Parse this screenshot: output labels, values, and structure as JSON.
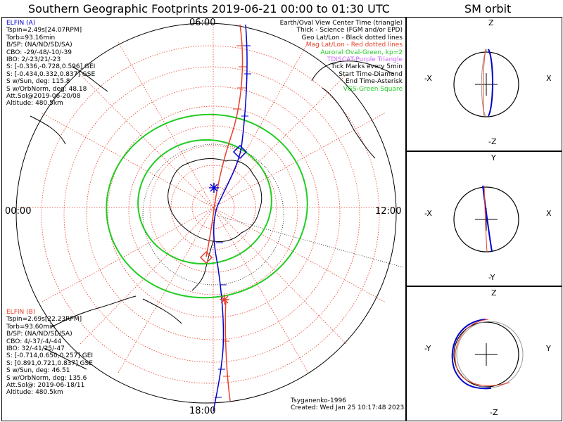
{
  "main_title": "Southern Geographic Footprints 2019-06-21 00:00 to 01:30 UTC",
  "sm_title": "SM orbit",
  "polar": {
    "time_labels": {
      "top": "06:00",
      "left": "00:00",
      "right": "12:00",
      "bottom": "18:00"
    }
  },
  "elfin_a": {
    "title": "ELFIN (A)",
    "lines": [
      "Tspin=2.49s[24.07RPM]",
      "Torb=93.16min",
      "B/SP: (NA/ND/SD/SA)",
      "CBO: -29/-48/-10/-39",
      "IBO: 2/-23/21/-23",
      "S: [-0.336,-0.728,0.596] GEI",
      "S: [-0.434,0.332,0.837] GSE",
      "S w/Sun, deg: 115.8",
      "S w/OrbNorm, deg: 48.18",
      "Att.Sol@2019-06-20/08",
      "Altitude: 480.5km"
    ],
    "color": "#0000cc"
  },
  "elfin_b": {
    "title": "ELFIN (B)",
    "lines": [
      "Tspin=2.69s[22.23RPM]",
      "Torb=93.60min",
      "B/SP: (NA/ND/SD/SA)",
      "CBO: 4/-37/-4/-44",
      "IBO: 32/-41/25/-47",
      "S: [-0.714,0.650,0.257] GEI",
      "S: [0.891,0.721,0.837] GSE",
      "S w/Sun, deg: 46.51",
      "S w/OrbNorm, deg: 135.6",
      "Att.Sol@: 2019-06-18/11",
      "Altitude: 480.5km"
    ],
    "color": "#e8402a"
  },
  "legend": [
    {
      "text": "Earth/Oval View Center Time (triangle)",
      "color": "#000000"
    },
    {
      "text": "Thick - Science (FGM and/or EPD)",
      "color": "#000000"
    },
    {
      "text": "Geo Lat/Lon - Black dotted lines",
      "color": "#000000"
    },
    {
      "text": "Mag Lat/Lon - Red dotted lines",
      "color": "#e8402a"
    },
    {
      "text": "Auroral Oval-Green, kp=2",
      "color": "#22cc22"
    },
    {
      "text": "TDISCAT-Purple Triangle",
      "color": "#cc66ff"
    },
    {
      "text": "Tick Marks every 5min",
      "color": "#000000"
    },
    {
      "text": "Start Time-Diamond",
      "color": "#000000"
    },
    {
      "text": "End Time-Asterisk",
      "color": "#000000"
    },
    {
      "text": "VGS-Green Square",
      "color": "#22cc22"
    }
  ],
  "footer": {
    "model": "Tsyganenko-1996",
    "created": "Created: Wed Jan 25 10:17:48 2023"
  },
  "sm_panels": [
    {
      "top": "Z",
      "bottom": "-Z",
      "left": "-X",
      "right": "X"
    },
    {
      "top": "Y",
      "bottom": "-Y",
      "left": "-X",
      "right": "X"
    },
    {
      "top": "Z",
      "bottom": "-Z",
      "left": "-Y",
      "right": "Y"
    }
  ],
  "colors": {
    "mag_grid": "#e8402a",
    "oval": "#22cc22",
    "elfin_a": "#0000cc",
    "elfin_b": "#e8402a"
  }
}
